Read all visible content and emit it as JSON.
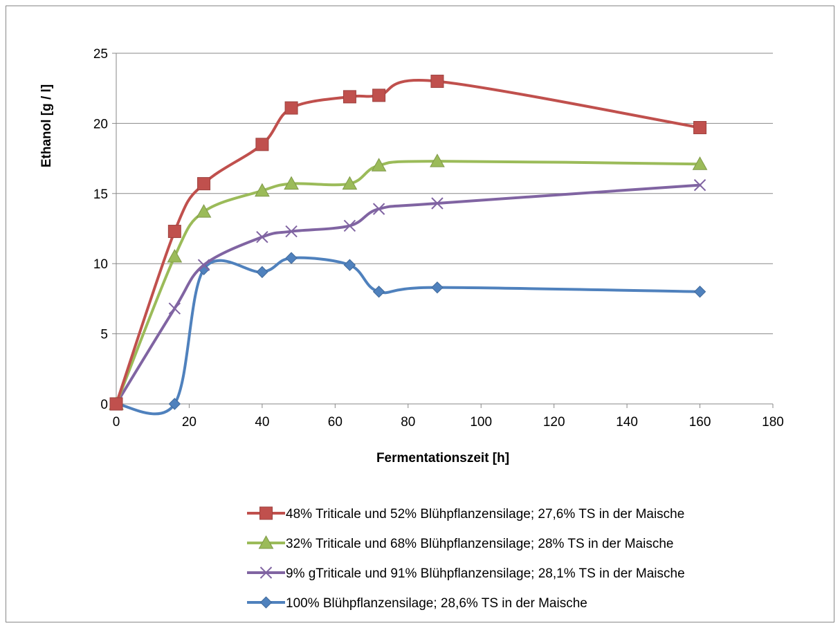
{
  "chart_data": {
    "type": "line",
    "title": "",
    "xlabel": "Fermentationszeit [h]",
    "ylabel": "Ethanol [g / l]",
    "xlim": [
      0,
      180
    ],
    "ylim": [
      0,
      25
    ],
    "x_ticks": [
      0,
      20,
      40,
      60,
      80,
      100,
      120,
      140,
      160,
      180
    ],
    "y_ticks": [
      0,
      5,
      10,
      15,
      20,
      25
    ],
    "grid": "horizontal",
    "legend_position": "bottom",
    "smooth": true,
    "series": [
      {
        "name": "48% Triticale und 52% Blühpflanzensilage; 27,6% TS in der Maische",
        "color": "#C0504D",
        "marker": "square",
        "x": [
          0,
          16,
          24,
          40,
          48,
          64,
          72,
          88,
          160
        ],
        "y": [
          0,
          12.3,
          15.7,
          18.5,
          21.1,
          21.9,
          22.0,
          23.0,
          19.7
        ]
      },
      {
        "name": "32% Triticale und 68% Blühpflanzensilage; 28% TS in der Maische",
        "color": "#9BBB59",
        "marker": "triangle",
        "x": [
          0,
          16,
          24,
          40,
          48,
          64,
          72,
          88,
          160
        ],
        "y": [
          0,
          10.5,
          13.7,
          15.2,
          15.7,
          15.7,
          17.0,
          17.3,
          17.1
        ]
      },
      {
        "name": "9% gTriticale und 91% Blühpflanzensilage; 28,1% TS in der Maische",
        "color": "#8064A2",
        "marker": "x",
        "x": [
          0,
          16,
          24,
          40,
          48,
          64,
          72,
          88,
          160
        ],
        "y": [
          0,
          6.8,
          9.9,
          11.9,
          12.3,
          12.7,
          13.9,
          14.3,
          15.6
        ]
      },
      {
        "name": "100% Blühpflanzensilage; 28,6% TS in der Maische",
        "color": "#4F81BD",
        "marker": "diamond",
        "x": [
          0,
          16,
          24,
          40,
          48,
          64,
          72,
          88,
          160
        ],
        "y": [
          0,
          0,
          9.6,
          9.4,
          10.4,
          9.9,
          8.0,
          8.3,
          8.0
        ]
      }
    ]
  }
}
